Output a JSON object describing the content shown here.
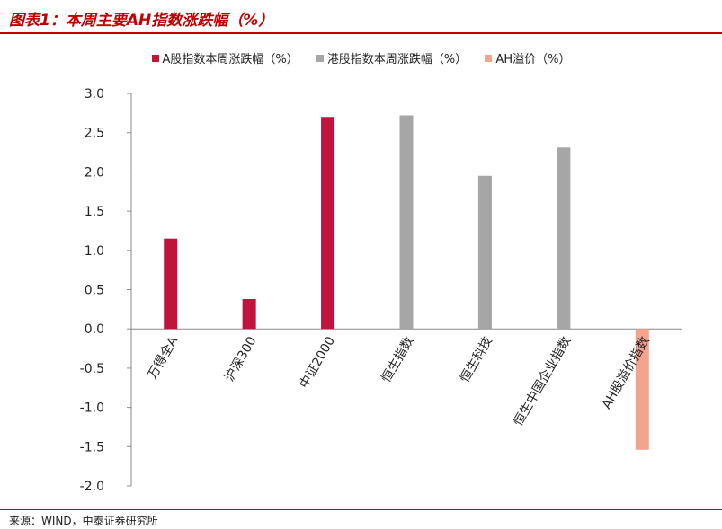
{
  "header": {
    "title": "图表1：本周主要AH指数涨跌幅（%）"
  },
  "footer": {
    "source": "来源：WIND，中泰证券研究所"
  },
  "colors": {
    "accent": "#c00000",
    "a_share": "#c0143c",
    "hk_share": "#a6a6a6",
    "ah_premium": "#f4a38f"
  },
  "chart_data": {
    "type": "bar",
    "categories": [
      "万得全A",
      "沪深300",
      "中证2000",
      "恒生指数",
      "恒生科技",
      "恒生中国企业指数",
      "AH股溢价指数"
    ],
    "series": [
      {
        "name": "A股指数本周涨跌幅（%）",
        "color": "#c0143c",
        "values": [
          1.15,
          0.38,
          2.7,
          null,
          null,
          null,
          null
        ]
      },
      {
        "name": "港股指数本周涨跌幅（%）",
        "color": "#a6a6a6",
        "values": [
          null,
          null,
          null,
          2.72,
          1.95,
          2.31,
          null
        ]
      },
      {
        "name": "AH溢价（%）",
        "color": "#f4a38f",
        "values": [
          null,
          null,
          null,
          null,
          null,
          null,
          -1.54
        ]
      }
    ],
    "ylim": [
      -2.0,
      3.0
    ],
    "yticks": [
      "3.0",
      "2.5",
      "2.0",
      "1.5",
      "1.0",
      "0.5",
      "0.0",
      "-0.5",
      "-1.0",
      "-1.5",
      "-2.0"
    ],
    "grid": false,
    "legend_position": "top"
  }
}
